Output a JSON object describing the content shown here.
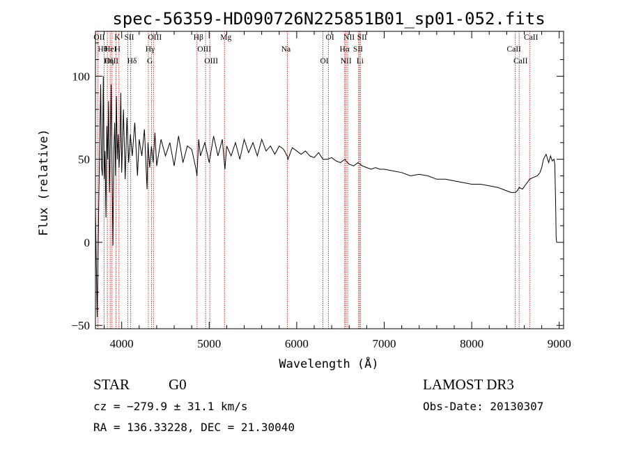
{
  "chart_data": {
    "type": "line",
    "title": "spec-56359-HD090726N225851B01_sp01-052.fits",
    "xlabel": "Wavelength (Å)",
    "ylabel": "Flux (relative)",
    "xlim": [
      3700,
      9050
    ],
    "ylim": [
      -52,
      127
    ],
    "x_ticks": [
      4000,
      5000,
      6000,
      7000,
      8000,
      9000
    ],
    "y_ticks": [
      -50,
      0,
      50,
      100
    ],
    "series": [
      {
        "name": "flux",
        "x": [
          3700,
          3720,
          3740,
          3760,
          3770,
          3780,
          3790,
          3800,
          3810,
          3820,
          3830,
          3840,
          3850,
          3860,
          3870,
          3880,
          3890,
          3900,
          3910,
          3920,
          3930,
          3940,
          3950,
          3960,
          3970,
          3980,
          3990,
          4000,
          4020,
          4040,
          4060,
          4080,
          4100,
          4120,
          4150,
          4180,
          4200,
          4230,
          4260,
          4290,
          4300,
          4320,
          4340,
          4360,
          4380,
          4400,
          4450,
          4500,
          4550,
          4600,
          4650,
          4700,
          4750,
          4800,
          4850,
          4860,
          4880,
          4900,
          4950,
          5000,
          5050,
          5100,
          5150,
          5180,
          5200,
          5250,
          5300,
          5350,
          5400,
          5450,
          5500,
          5550,
          5600,
          5650,
          5700,
          5750,
          5800,
          5850,
          5890,
          5900,
          5950,
          6000,
          6050,
          6100,
          6150,
          6200,
          6250,
          6300,
          6350,
          6400,
          6450,
          6500,
          6550,
          6563,
          6600,
          6650,
          6700,
          6750,
          6800,
          6850,
          6900,
          6950,
          7000,
          7100,
          7200,
          7300,
          7400,
          7500,
          7600,
          7700,
          7800,
          7900,
          8000,
          8100,
          8200,
          8300,
          8350,
          8400,
          8450,
          8498,
          8520,
          8542,
          8580,
          8620,
          8662,
          8700,
          8750,
          8780,
          8800,
          8820,
          8850,
          8880,
          8900,
          8920,
          8940,
          8950,
          8960,
          8965,
          8970
        ],
        "values": [
          20,
          -45,
          30,
          95,
          45,
          40,
          100,
          38,
          55,
          15,
          70,
          50,
          85,
          30,
          60,
          95,
          42,
          -2,
          55,
          72,
          40,
          88,
          50,
          65,
          45,
          58,
          90,
          42,
          80,
          38,
          75,
          48,
          65,
          52,
          72,
          40,
          62,
          52,
          68,
          32,
          60,
          45,
          58,
          48,
          66,
          46,
          62,
          52,
          60,
          46,
          64,
          48,
          58,
          56,
          44,
          40,
          62,
          52,
          60,
          48,
          64,
          52,
          62,
          44,
          58,
          52,
          60,
          50,
          62,
          54,
          60,
          52,
          62,
          55,
          58,
          53,
          58,
          56,
          52,
          50,
          57,
          55,
          53,
          55,
          52,
          51,
          54,
          50,
          50,
          51,
          49,
          48,
          50,
          49,
          47,
          46,
          48,
          46,
          45,
          44,
          45,
          44,
          44,
          43,
          42,
          40,
          41,
          40,
          38,
          38,
          37,
          36,
          35,
          35,
          34,
          33,
          32,
          31,
          30,
          30,
          31,
          33,
          32,
          35,
          38,
          39,
          40,
          42,
          45,
          50,
          53,
          48,
          52,
          49,
          50,
          47,
          20,
          3,
          0
        ]
      }
    ],
    "lines": [
      {
        "name": "OII",
        "wavelength": 3727
      },
      {
        "name": "Hθ",
        "wavelength": 3798
      },
      {
        "name": "OIII",
        "wavelength": 3869
      },
      {
        "name": "K",
        "wavelength": 3934
      },
      {
        "name": "HeI",
        "wavelength": 3889
      },
      {
        "name": "Hη",
        "wavelength": 3836
      },
      {
        "name": "SII",
        "wavelength": 4070
      },
      {
        "name": "H",
        "wavelength": 3969
      },
      {
        "name": "Hδ",
        "wavelength": 4102
      },
      {
        "name": "OIII",
        "wavelength": 4363
      },
      {
        "name": "Hγ",
        "wavelength": 4340
      },
      {
        "name": "G",
        "wavelength": 4305
      },
      {
        "name": "Hβ",
        "wavelength": 4861
      },
      {
        "name": "OIII",
        "wavelength": 4959
      },
      {
        "name": "OIII",
        "wavelength": 5007
      },
      {
        "name": "Mg",
        "wavelength": 5175
      },
      {
        "name": "Na",
        "wavelength": 5893
      },
      {
        "name": "OI",
        "wavelength": 6300
      },
      {
        "name": "OI",
        "wavelength": 6364
      },
      {
        "name": "Hα",
        "wavelength": 6563
      },
      {
        "name": "NII",
        "wavelength": 6548
      },
      {
        "name": "NII",
        "wavelength": 6583
      },
      {
        "name": "SII",
        "wavelength": 6717
      },
      {
        "name": "Li",
        "wavelength": 6708
      },
      {
        "name": "SII",
        "wavelength": 6731
      },
      {
        "name": "CaII",
        "wavelength": 8498
      },
      {
        "name": "CaII",
        "wavelength": 8542
      },
      {
        "name": "CaII",
        "wavelength": 8662
      }
    ]
  },
  "info": {
    "object_class": "STAR",
    "subclass": "G0",
    "survey": "LAMOST DR3",
    "cz": "cz = −279.9 ± 31.1 km/s",
    "obs_date": "Obs-Date: 20130307",
    "coords": "RA = 136.33228, DEC =  21.30040"
  }
}
